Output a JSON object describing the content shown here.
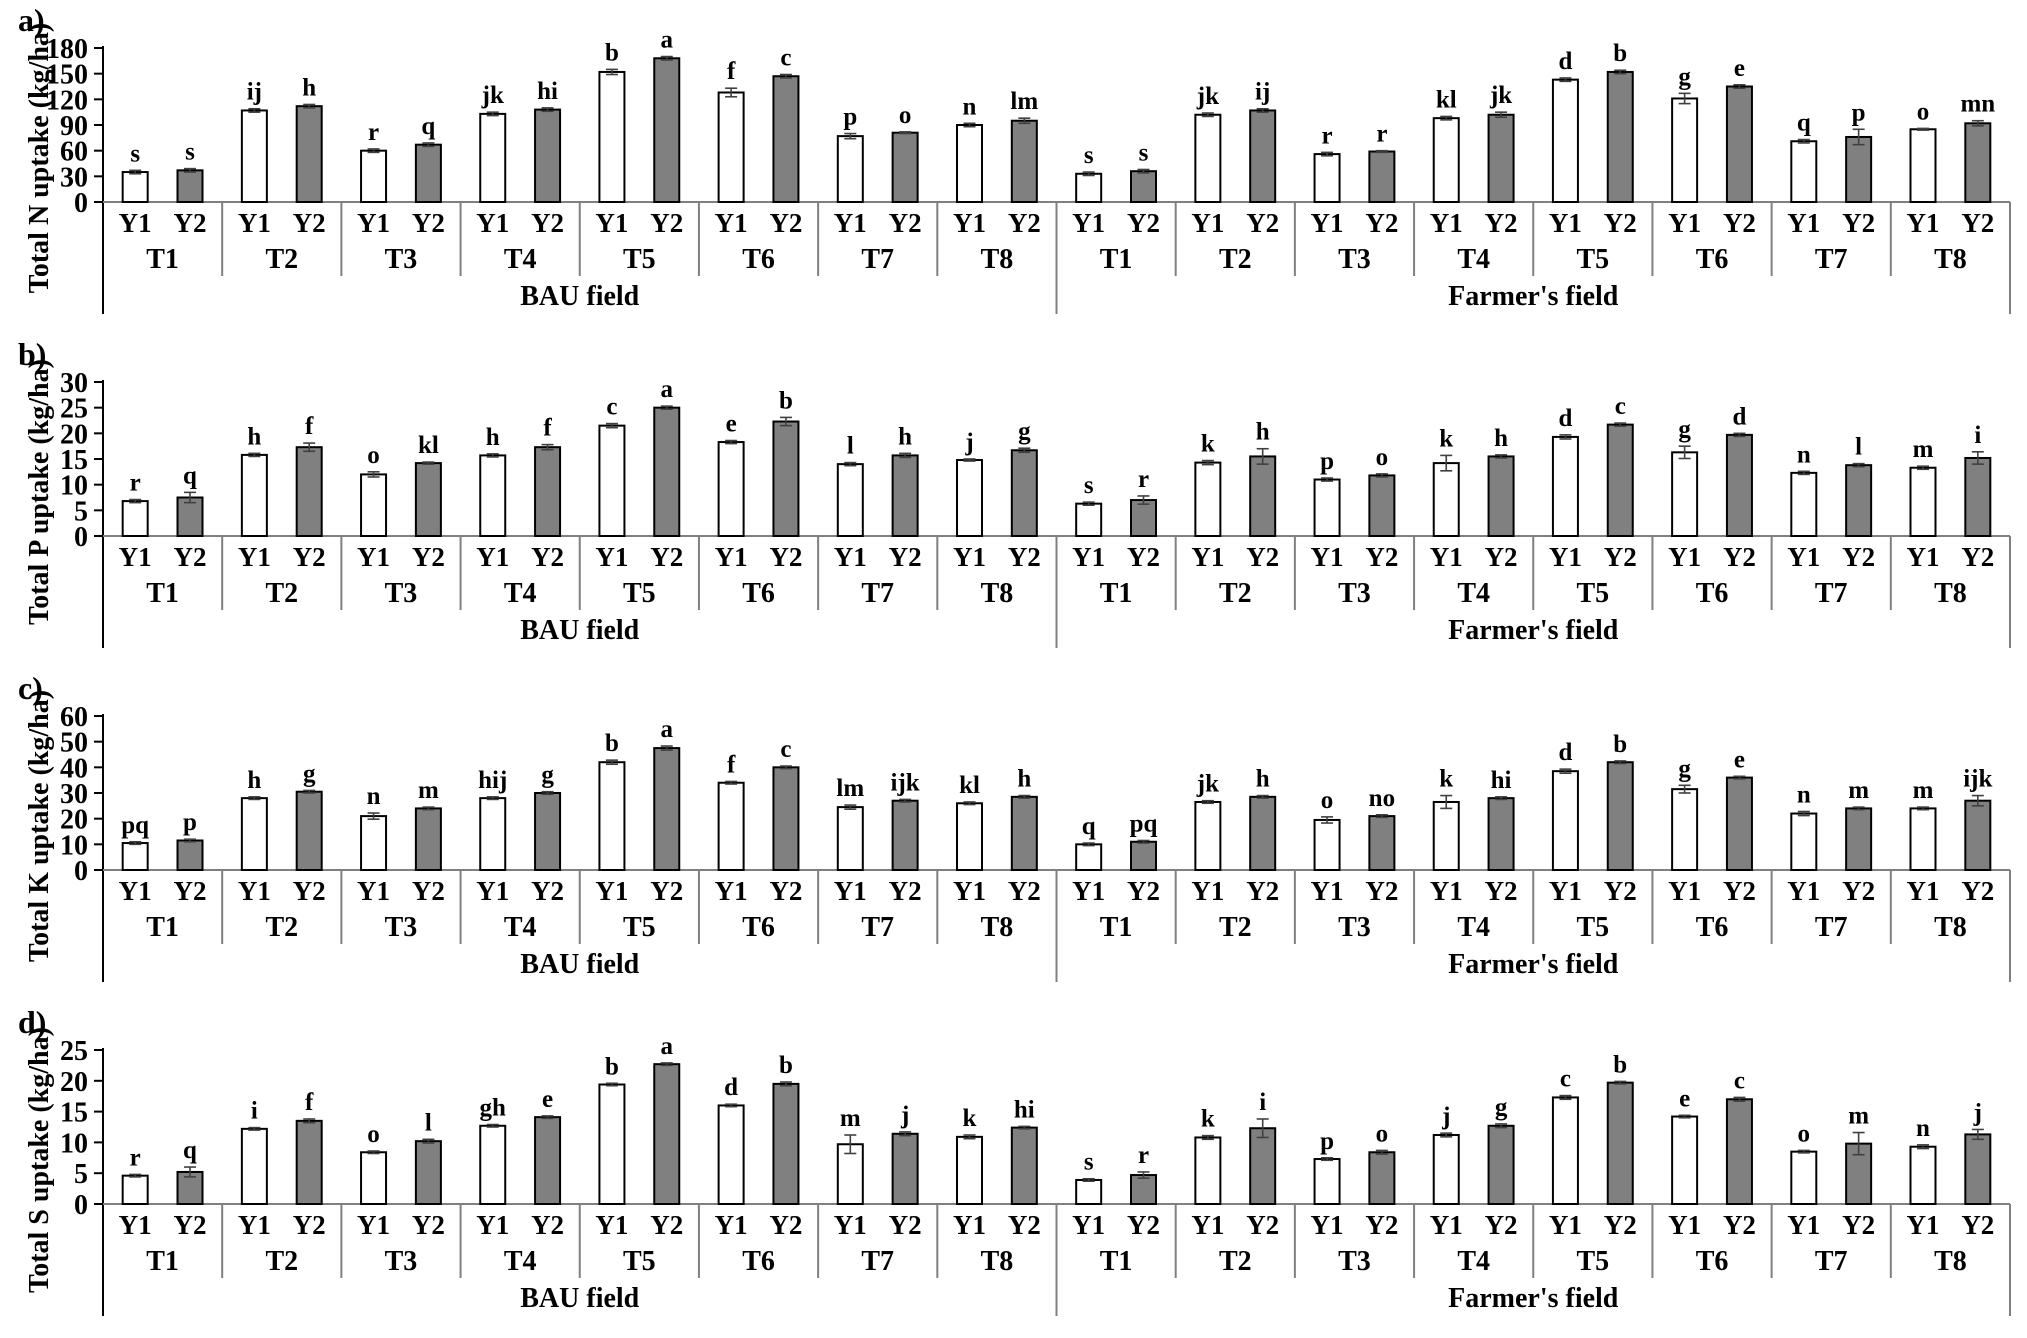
{
  "colors": {
    "y1_fill": "#ffffff",
    "y2_fill": "#808080",
    "bar_stroke": "#000000",
    "axis_line": "#000000",
    "table_line": "#808080",
    "error_bar": "#404040"
  },
  "chart_data": [
    {
      "type": "bar",
      "panel_label": "a)",
      "ylabel": "Total N uptake (kg/ha)",
      "ylim": [
        0,
        180
      ],
      "ytick_step": 30,
      "grid": false,
      "legend": "none",
      "series_labels": [
        "Y1",
        "Y2"
      ],
      "sections": [
        {
          "field": "BAU field",
          "treatments": [
            "T1",
            "T2",
            "T3",
            "T4",
            "T5",
            "T6",
            "T7",
            "T8"
          ],
          "y1": [
            35,
            107,
            60,
            103,
            152,
            128,
            77,
            90
          ],
          "y2": [
            37,
            112,
            67,
            108,
            168,
            147,
            81,
            95
          ],
          "y1_err": [
            2,
            2,
            2,
            2,
            3,
            5,
            3,
            2
          ],
          "y2_err": [
            2,
            2,
            2,
            2,
            2,
            2,
            1,
            3
          ],
          "y1_letters": [
            "s",
            "ij",
            "r",
            "jk",
            "b",
            "f",
            "p",
            "n"
          ],
          "y2_letters": [
            "s",
            "h",
            "q",
            "hi",
            "a",
            "c",
            "o",
            "lm"
          ]
        },
        {
          "field": "Farmer's field",
          "treatments": [
            "T1",
            "T2",
            "T3",
            "T4",
            "T5",
            "T6",
            "T7",
            "T8"
          ],
          "y1": [
            33,
            102,
            56,
            98,
            143,
            121,
            71,
            85
          ],
          "y2": [
            36,
            107,
            59,
            102,
            152,
            135,
            76,
            92
          ],
          "y1_err": [
            2,
            2,
            2,
            2,
            2,
            6,
            2,
            1
          ],
          "y2_err": [
            2,
            2,
            1,
            3,
            2,
            2,
            9,
            3
          ],
          "y1_letters": [
            "s",
            "jk",
            "r",
            "kl",
            "d",
            "g",
            "q",
            "o"
          ],
          "y2_letters": [
            "s",
            "ij",
            "r",
            "jk",
            "b",
            "e",
            "p",
            "mn"
          ]
        }
      ]
    },
    {
      "type": "bar",
      "panel_label": "b)",
      "ylabel": "Total P uptake (kg/ha)",
      "ylim": [
        0,
        30
      ],
      "ytick_step": 5,
      "grid": false,
      "legend": "none",
      "series_labels": [
        "Y1",
        "Y2"
      ],
      "sections": [
        {
          "field": "BAU field",
          "treatments": [
            "T1",
            "T2",
            "T3",
            "T4",
            "T5",
            "T6",
            "T7",
            "T8"
          ],
          "y1": [
            6.8,
            15.8,
            12.0,
            15.7,
            21.5,
            18.3,
            14.0,
            14.8
          ],
          "y2": [
            7.5,
            17.3,
            14.2,
            17.3,
            25.0,
            22.3,
            15.7,
            16.7
          ],
          "y1_err": [
            0.3,
            0.3,
            0.5,
            0.3,
            0.4,
            0.3,
            0.3,
            0.2
          ],
          "y2_err": [
            1.0,
            0.8,
            0.2,
            0.5,
            0.3,
            0.8,
            0.4,
            0.4
          ],
          "y1_letters": [
            "r",
            "h",
            "o",
            "h",
            "c",
            "e",
            "l",
            "j"
          ],
          "y2_letters": [
            "q",
            "f",
            "kl",
            "f",
            "a",
            "b",
            "h",
            "g"
          ]
        },
        {
          "field": "Farmer's field",
          "treatments": [
            "T1",
            "T2",
            "T3",
            "T4",
            "T5",
            "T6",
            "T7",
            "T8"
          ],
          "y1": [
            6.3,
            14.3,
            11.0,
            14.2,
            19.3,
            16.3,
            12.3,
            13.3
          ],
          "y2": [
            7.0,
            15.5,
            11.8,
            15.5,
            21.7,
            19.7,
            13.8,
            15.2
          ],
          "y1_err": [
            0.3,
            0.4,
            0.3,
            1.5,
            0.4,
            1.2,
            0.3,
            0.3
          ],
          "y2_err": [
            0.8,
            1.5,
            0.3,
            0.3,
            0.3,
            0.3,
            0.3,
            1.2
          ],
          "y1_letters": [
            "s",
            "k",
            "p",
            "k",
            "d",
            "g",
            "n",
            "m"
          ],
          "y2_letters": [
            "r",
            "h",
            "o",
            "h",
            "c",
            "d",
            "l",
            "i"
          ]
        }
      ]
    },
    {
      "type": "bar",
      "panel_label": "c)",
      "ylabel": "Total K uptake (kg/ha)",
      "ylim": [
        0,
        60
      ],
      "ytick_step": 10,
      "grid": false,
      "legend": "none",
      "series_labels": [
        "Y1",
        "Y2"
      ],
      "sections": [
        {
          "field": "BAU field",
          "treatments": [
            "T1",
            "T2",
            "T3",
            "T4",
            "T5",
            "T6",
            "T7",
            "T8"
          ],
          "y1": [
            10.5,
            28.0,
            21.0,
            28.0,
            42.0,
            34.0,
            24.5,
            26.0
          ],
          "y2": [
            11.5,
            30.5,
            24.0,
            30.0,
            47.5,
            40.0,
            27.0,
            28.5
          ],
          "y1_err": [
            0.5,
            0.5,
            1.2,
            0.5,
            0.8,
            0.5,
            0.8,
            0.5
          ],
          "y2_err": [
            0.5,
            0.5,
            0.5,
            0.5,
            0.8,
            0.5,
            0.5,
            0.5
          ],
          "y1_letters": [
            "pq",
            "h",
            "n",
            "hij",
            "b",
            "f",
            "lm",
            "kl"
          ],
          "y2_letters": [
            "p",
            "g",
            "m",
            "g",
            "a",
            "c",
            "ijk",
            "h"
          ]
        },
        {
          "field": "Farmer's field",
          "treatments": [
            "T1",
            "T2",
            "T3",
            "T4",
            "T5",
            "T6",
            "T7",
            "T8"
          ],
          "y1": [
            10.0,
            26.5,
            19.5,
            26.5,
            38.5,
            31.5,
            22.0,
            24.0
          ],
          "y2": [
            11.0,
            28.5,
            21.0,
            28.0,
            42.0,
            36.0,
            24.0,
            27.0
          ],
          "y1_err": [
            0.5,
            0.5,
            1.2,
            2.5,
            0.8,
            1.5,
            0.8,
            0.5
          ],
          "y2_err": [
            0.5,
            0.5,
            0.5,
            0.5,
            0.5,
            0.5,
            0.5,
            2.0
          ],
          "y1_letters": [
            "q",
            "jk",
            "o",
            "k",
            "d",
            "g",
            "n",
            "m"
          ],
          "y2_letters": [
            "pq",
            "h",
            "no",
            "hi",
            "b",
            "e",
            "m",
            "ijk"
          ]
        }
      ]
    },
    {
      "type": "bar",
      "panel_label": "d)",
      "ylabel": "Total S uptake (kg/ha)",
      "ylim": [
        0,
        25
      ],
      "ytick_step": 5,
      "grid": false,
      "legend": "none",
      "series_labels": [
        "Y1",
        "Y2"
      ],
      "sections": [
        {
          "field": "BAU field",
          "treatments": [
            "T1",
            "T2",
            "T3",
            "T4",
            "T5",
            "T6",
            "T7",
            "T8"
          ],
          "y1": [
            4.6,
            12.2,
            8.4,
            12.7,
            19.4,
            16.0,
            9.7,
            10.9
          ],
          "y2": [
            5.2,
            13.5,
            10.2,
            14.1,
            22.7,
            19.5,
            11.4,
            12.4
          ],
          "y1_err": [
            0.2,
            0.2,
            0.2,
            0.2,
            0.2,
            0.2,
            1.5,
            0.3
          ],
          "y2_err": [
            0.8,
            0.3,
            0.3,
            0.2,
            0.2,
            0.3,
            0.3,
            0.2
          ],
          "y1_letters": [
            "r",
            "i",
            "o",
            "gh",
            "b",
            "d",
            "m",
            "k"
          ],
          "y2_letters": [
            "q",
            "f",
            "l",
            "e",
            "a",
            "b",
            "j",
            "hi"
          ]
        },
        {
          "field": "Farmer's field",
          "treatments": [
            "T1",
            "T2",
            "T3",
            "T4",
            "T5",
            "T6",
            "T7",
            "T8"
          ],
          "y1": [
            3.9,
            10.8,
            7.3,
            11.2,
            17.3,
            14.2,
            8.5,
            9.3
          ],
          "y2": [
            4.7,
            12.3,
            8.4,
            12.7,
            19.7,
            17.0,
            9.8,
            11.3
          ],
          "y1_err": [
            0.2,
            0.3,
            0.2,
            0.3,
            0.3,
            0.2,
            0.2,
            0.3
          ],
          "y2_err": [
            0.5,
            1.5,
            0.3,
            0.3,
            0.2,
            0.3,
            1.8,
            0.8
          ],
          "y1_letters": [
            "s",
            "k",
            "p",
            "j",
            "c",
            "e",
            "o",
            "n"
          ],
          "y2_letters": [
            "r",
            "i",
            "o",
            "g",
            "b",
            "c",
            "m",
            "j"
          ]
        }
      ]
    }
  ]
}
